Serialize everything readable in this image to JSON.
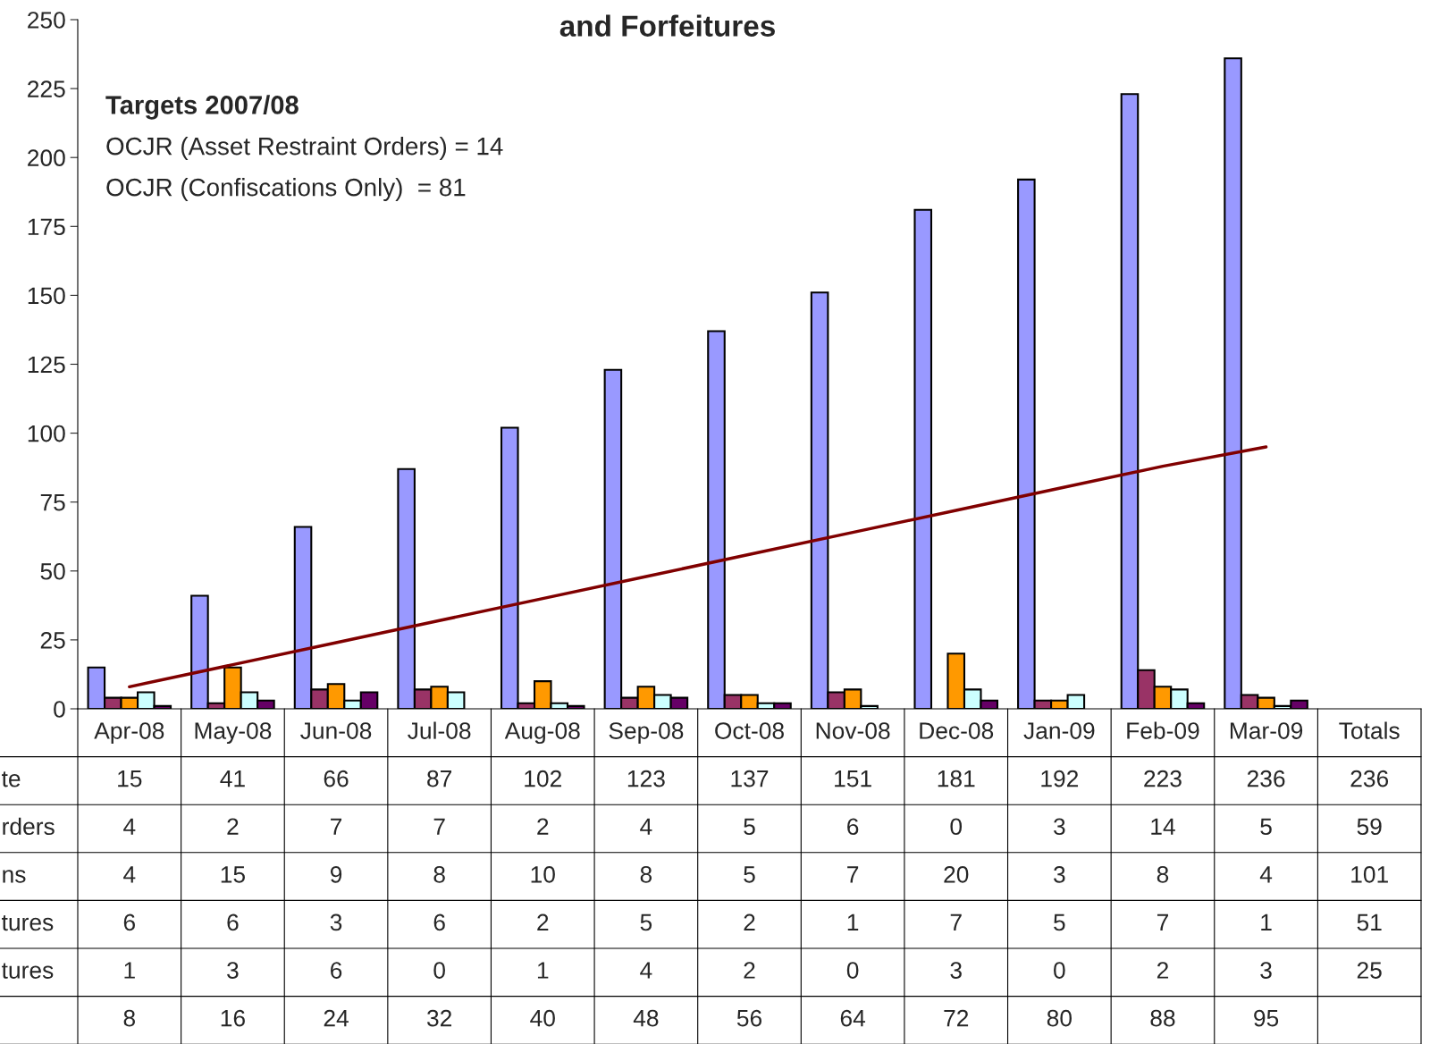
{
  "chart_data": {
    "type": "bar",
    "title": "and Forfeitures",
    "categories": [
      "Apr-08",
      "May-08",
      "Jun-08",
      "Jul-08",
      "Aug-08",
      "Sep-08",
      "Oct-08",
      "Nov-08",
      "Dec-08",
      "Jan-09",
      "Feb-09",
      "Mar-09",
      "Totals"
    ],
    "series": [
      {
        "color": "#9999ff",
        "values": [
          15,
          41,
          66,
          87,
          102,
          123,
          137,
          151,
          181,
          192,
          223,
          236,
          null
        ],
        "value_labels": [
          "15",
          "41",
          "66",
          "87",
          "102",
          "123",
          "137",
          "151",
          "181",
          "192",
          "223",
          "236",
          "236"
        ]
      },
      {
        "color": "#993366",
        "values": [
          4,
          2,
          7,
          7,
          2,
          4,
          5,
          6,
          0,
          3,
          14,
          5,
          null
        ],
        "value_labels": [
          "4",
          "2",
          "7",
          "7",
          "2",
          "4",
          "5",
          "6",
          "0",
          "3",
          "14",
          "5",
          "59"
        ]
      },
      {
        "color": "#ff9900",
        "values": [
          4,
          15,
          9,
          8,
          10,
          8,
          5,
          7,
          20,
          3,
          8,
          4,
          null
        ],
        "value_labels": [
          "4",
          "15",
          "9",
          "8",
          "10",
          "8",
          "5",
          "7",
          "20",
          "3",
          "8",
          "4",
          "101"
        ]
      },
      {
        "color": "#ccffff",
        "values": [
          6,
          6,
          3,
          6,
          2,
          5,
          2,
          1,
          7,
          5,
          7,
          1,
          null
        ],
        "value_labels": [
          "6",
          "6",
          "3",
          "6",
          "2",
          "5",
          "2",
          "1",
          "7",
          "5",
          "7",
          "1",
          "51"
        ]
      },
      {
        "color": "#660066",
        "values": [
          1,
          3,
          6,
          0,
          1,
          4,
          2,
          0,
          3,
          0,
          2,
          3,
          null
        ],
        "value_labels": [
          "1",
          "3",
          "6",
          "0",
          "1",
          "4",
          "2",
          "0",
          "3",
          "0",
          "2",
          "3",
          "25"
        ]
      },
      {
        "type": "line",
        "color": "#800000",
        "values": [
          8,
          16,
          24,
          32,
          40,
          48,
          56,
          64,
          72,
          80,
          88,
          95,
          null
        ],
        "value_labels": [
          "8",
          "16",
          "24",
          "32",
          "40",
          "48",
          "56",
          "64",
          "72",
          "80",
          "88",
          "95",
          null
        ]
      }
    ],
    "ylim": [
      0,
      250
    ],
    "yticks": [
      0,
      25,
      50,
      75,
      100,
      125,
      150,
      175,
      200,
      225,
      250
    ],
    "grid": false,
    "legend": false,
    "annotations": [
      "Targets 2007/08",
      "OCJR (Asset Restraint Orders) = 14",
      "OCJR (Confiscations Only)  = 81",
      "te",
      "rders",
      "ns",
      "tures",
      "tures"
    ]
  }
}
